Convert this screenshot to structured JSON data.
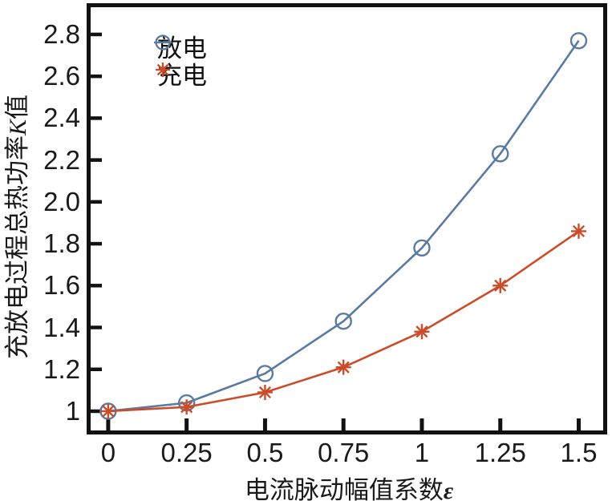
{
  "chart_data": {
    "type": "line",
    "title": "",
    "xlabel": "电流脉动幅值系数ε",
    "ylabel": "充放电过程总热功率K值",
    "xlabel_parts": {
      "main": "电流脉动幅值系数",
      "symbol": "ε"
    },
    "ylabel_parts": {
      "pre": "充放电过程总热功率",
      "symbol": "K",
      "post": "值"
    },
    "x": [
      0,
      0.25,
      0.5,
      0.75,
      1,
      1.25,
      1.5
    ],
    "xtick_labels": [
      "0",
      "0.25",
      "0.5",
      "0.75",
      "1",
      "1.25",
      "1.5"
    ],
    "ytick_values": [
      1,
      1.2,
      1.4,
      1.6,
      1.8,
      2.0,
      2.2,
      2.4,
      2.6,
      2.8
    ],
    "ytick_labels": [
      "1",
      "1.2",
      "1.4",
      "1.6",
      "1.8",
      "2.0",
      "2.2",
      "2.4",
      "2.6",
      "2.8"
    ],
    "xlim": [
      -0.056,
      1.578
    ],
    "ylim": [
      0.908,
      2.93
    ],
    "grid": false,
    "legend_position": "top-left",
    "frame_color": "#111111",
    "series": [
      {
        "name": "放电",
        "marker": "circle",
        "color": "#5b7aa1",
        "values": [
          1.0,
          1.04,
          1.18,
          1.43,
          1.78,
          2.23,
          2.77
        ]
      },
      {
        "name": "充电",
        "marker": "asterisk",
        "color": "#cb4c2a",
        "values": [
          1.0,
          1.02,
          1.09,
          1.21,
          1.38,
          1.6,
          1.86
        ]
      }
    ]
  }
}
